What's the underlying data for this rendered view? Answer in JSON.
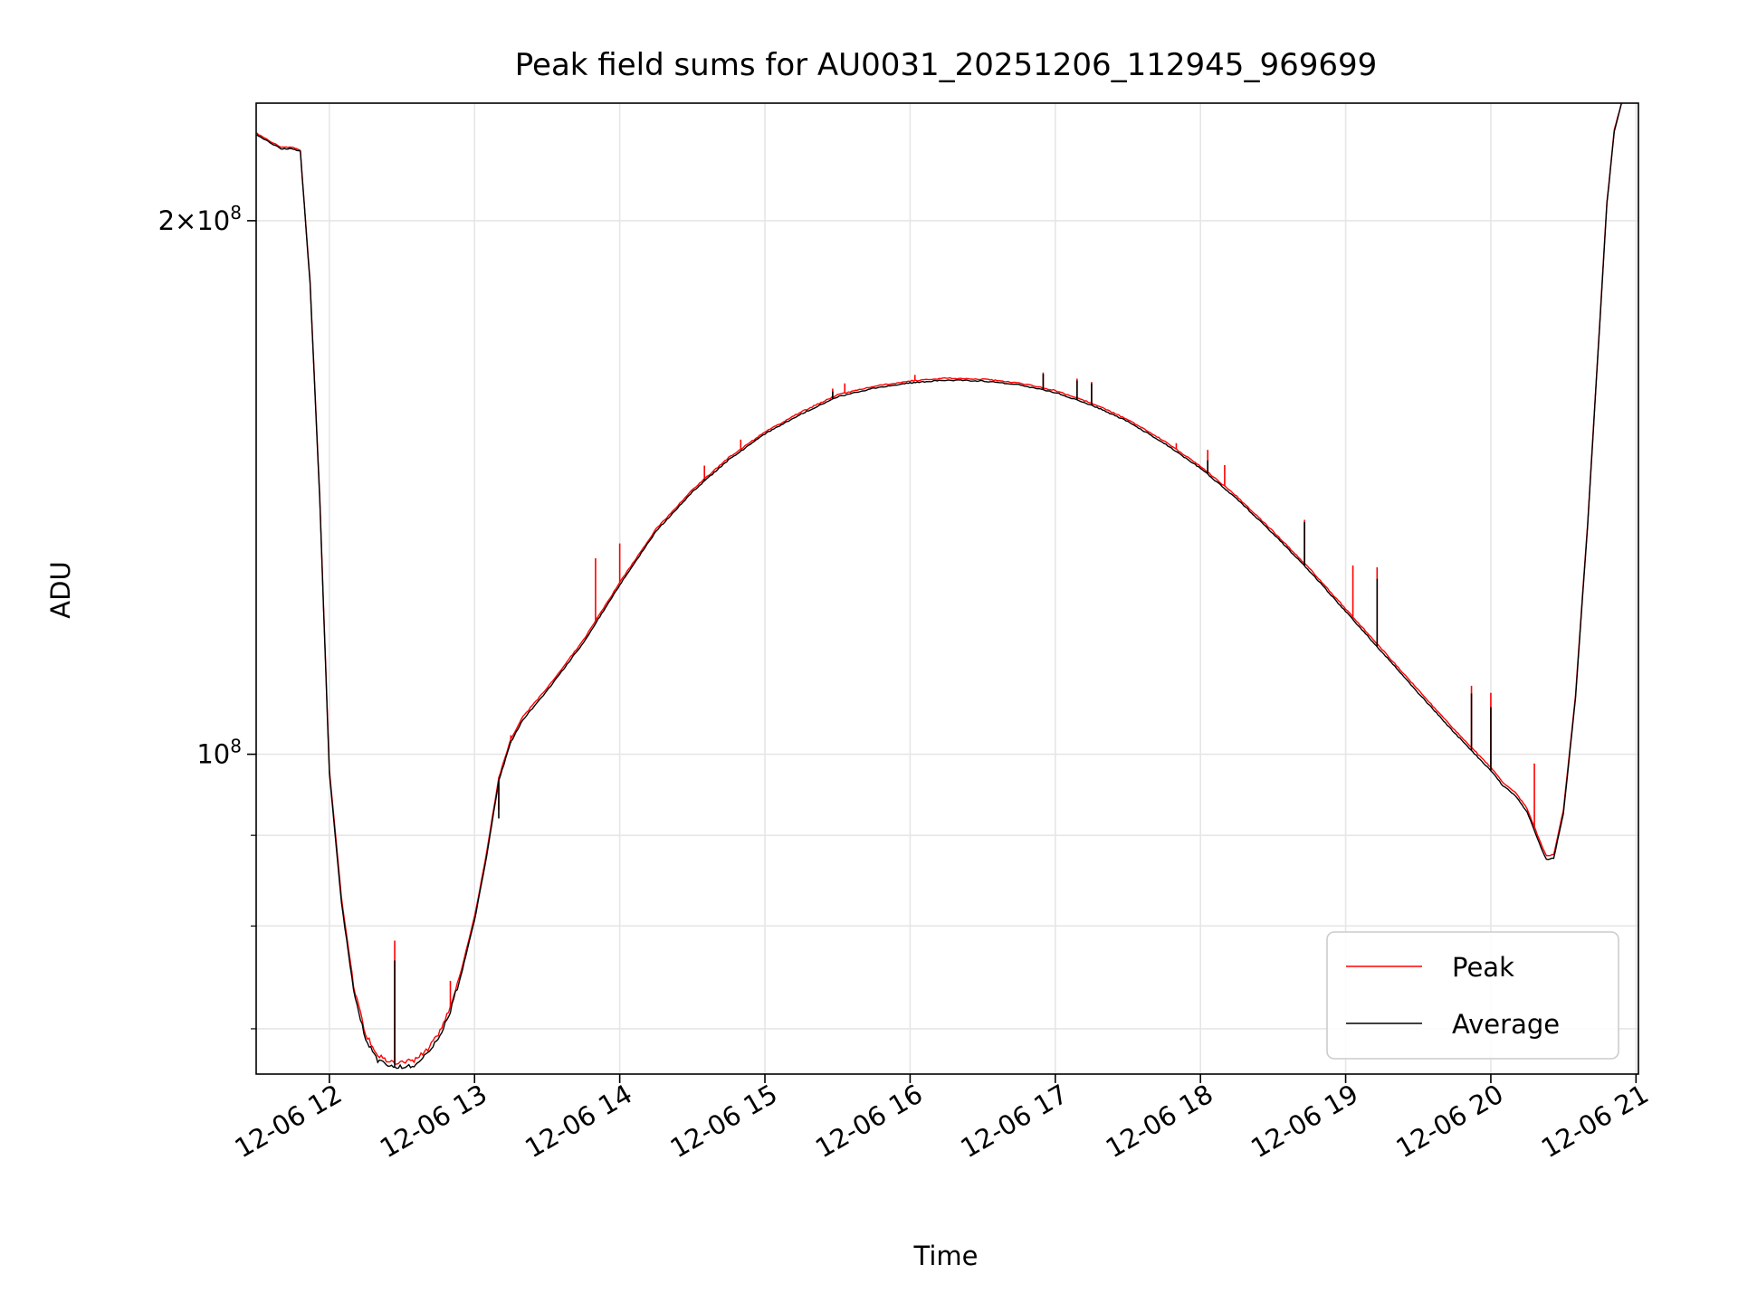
{
  "chart_data": {
    "type": "line",
    "title": "Peak field sums for AU0031_20251206_112945_969699",
    "xlabel": "Time",
    "ylabel": "ADU",
    "yscale": "log",
    "grid": true,
    "legend_position": "lower-right",
    "xlim": [
      "2025-12-06 11:29:45",
      "2025-12-06 21:01:00"
    ],
    "ylim": [
      66000000,
      233000000
    ],
    "x_ticks": [
      "12-06 12",
      "12-06 13",
      "12-06 14",
      "12-06 15",
      "12-06 16",
      "12-06 17",
      "12-06 18",
      "12-06 19",
      "12-06 20",
      "12-06 21"
    ],
    "y_ticks": [
      {
        "value": 100000000,
        "base": "10",
        "exp": "8",
        "coef": ""
      },
      {
        "value": 200000000,
        "base": "10",
        "exp": "8",
        "coef": "2"
      }
    ],
    "y_minor_ticks": [
      70000000,
      80000000,
      90000000
    ],
    "series": [
      {
        "name": "Peak",
        "color": "#ff0000",
        "points": [
          [
            "11:30",
            224000000
          ],
          [
            "11:40",
            220000000
          ],
          [
            "11:45",
            220000000
          ],
          [
            "11:48",
            219000000
          ],
          [
            "11:52",
            185000000
          ],
          [
            "11:56",
            140000000
          ],
          [
            "12:00",
            98000000
          ],
          [
            "12:05",
            83000000
          ],
          [
            "12:10",
            74000000
          ],
          [
            "12:15",
            69500000
          ],
          [
            "12:20",
            67700000
          ],
          [
            "12:25",
            67000000
          ],
          [
            "12:30",
            67000000
          ],
          [
            "12:35",
            67200000
          ],
          [
            "12:40",
            68000000
          ],
          [
            "12:45",
            69500000
          ],
          [
            "12:50",
            72000000
          ],
          [
            "12:55",
            76000000
          ],
          [
            "13:00",
            81000000
          ],
          [
            "13:05",
            88000000
          ],
          [
            "13:10",
            97000000
          ],
          [
            "13:15",
            102000000
          ],
          [
            "13:20",
            105000000
          ],
          [
            "13:30",
            109000000
          ],
          [
            "13:45",
            116000000
          ],
          [
            "14:00",
            125000000
          ],
          [
            "14:15",
            134000000
          ],
          [
            "14:30",
            141000000
          ],
          [
            "14:45",
            147000000
          ],
          [
            "15:00",
            152000000
          ],
          [
            "15:15",
            156000000
          ],
          [
            "15:30",
            159500000
          ],
          [
            "15:45",
            161300000
          ],
          [
            "16:00",
            162400000
          ],
          [
            "16:15",
            163000000
          ],
          [
            "16:30",
            162800000
          ],
          [
            "16:45",
            162000000
          ],
          [
            "17:00",
            160400000
          ],
          [
            "17:15",
            157800000
          ],
          [
            "17:30",
            154500000
          ],
          [
            "17:45",
            150200000
          ],
          [
            "18:00",
            145400000
          ],
          [
            "18:15",
            139800000
          ],
          [
            "18:30",
            133600000
          ],
          [
            "18:45",
            127300000
          ],
          [
            "19:00",
            120800000
          ],
          [
            "19:15",
            114600000
          ],
          [
            "19:30",
            108700000
          ],
          [
            "19:45",
            103200000
          ],
          [
            "20:00",
            98300000
          ],
          [
            "20:05",
            96400000
          ],
          [
            "20:10",
            95200000
          ],
          [
            "20:15",
            93200000
          ],
          [
            "20:20",
            89500000
          ],
          [
            "20:23",
            87600000
          ],
          [
            "20:26",
            87800000
          ],
          [
            "20:30",
            93000000
          ],
          [
            "20:35",
            108000000
          ],
          [
            "20:40",
            135000000
          ],
          [
            "20:45",
            175000000
          ],
          [
            "20:48",
            205000000
          ],
          [
            "20:51",
            225000000
          ],
          [
            "20:54",
            233000000
          ]
        ],
        "spikes": [
          [
            "12:27",
            78500000
          ],
          [
            "12:50",
            74500000
          ],
          [
            "13:10",
            93000000
          ],
          [
            "13:15",
            102500000
          ],
          [
            "13:50",
            129000000
          ],
          [
            "14:00",
            131500000
          ],
          [
            "14:35",
            145500000
          ],
          [
            "14:50",
            150500000
          ],
          [
            "15:28",
            160800000
          ],
          [
            "15:33",
            161900000
          ],
          [
            "16:02",
            163700000
          ],
          [
            "16:55",
            164200000
          ],
          [
            "17:09",
            162900000
          ],
          [
            "17:15",
            162200000
          ],
          [
            "17:50",
            149800000
          ],
          [
            "18:03",
            148500000
          ],
          [
            "18:10",
            145600000
          ],
          [
            "18:43",
            135600000
          ],
          [
            "19:03",
            127800000
          ],
          [
            "19:13",
            127500000
          ],
          [
            "19:52",
            109300000
          ],
          [
            "20:00",
            108300000
          ],
          [
            "20:18",
            98800000
          ]
        ]
      },
      {
        "name": "Average",
        "color": "#000000",
        "points": [
          [
            "11:30",
            223500000
          ],
          [
            "11:40",
            219600000
          ],
          [
            "11:45",
            219600000
          ],
          [
            "11:48",
            218800000
          ],
          [
            "11:52",
            184500000
          ],
          [
            "11:56",
            139500000
          ],
          [
            "12:00",
            97500000
          ],
          [
            "12:05",
            82500000
          ],
          [
            "12:10",
            73500000
          ],
          [
            "12:15",
            69000000
          ],
          [
            "12:20",
            67200000
          ],
          [
            "12:25",
            66600000
          ],
          [
            "12:30",
            66600000
          ],
          [
            "12:35",
            66800000
          ],
          [
            "12:40",
            67600000
          ],
          [
            "12:45",
            69100000
          ],
          [
            "12:50",
            71600000
          ],
          [
            "12:55",
            75600000
          ],
          [
            "13:00",
            80600000
          ],
          [
            "13:05",
            87600000
          ],
          [
            "13:10",
            96600000
          ],
          [
            "13:15",
            101600000
          ],
          [
            "13:20",
            104600000
          ],
          [
            "13:30",
            108600000
          ],
          [
            "13:45",
            115600000
          ],
          [
            "14:00",
            124600000
          ],
          [
            "14:15",
            133600000
          ],
          [
            "14:30",
            140600000
          ],
          [
            "14:45",
            146600000
          ],
          [
            "15:00",
            151600000
          ],
          [
            "15:15",
            155600000
          ],
          [
            "15:30",
            159100000
          ],
          [
            "15:45",
            160900000
          ],
          [
            "16:00",
            162000000
          ],
          [
            "16:15",
            162600000
          ],
          [
            "16:30",
            162400000
          ],
          [
            "16:45",
            161600000
          ],
          [
            "17:00",
            160000000
          ],
          [
            "17:15",
            157400000
          ],
          [
            "17:30",
            154100000
          ],
          [
            "17:45",
            149800000
          ],
          [
            "18:00",
            145000000
          ],
          [
            "18:15",
            139400000
          ],
          [
            "18:30",
            133200000
          ],
          [
            "18:45",
            126900000
          ],
          [
            "19:00",
            120400000
          ],
          [
            "19:15",
            114200000
          ],
          [
            "19:30",
            108300000
          ],
          [
            "19:45",
            102800000
          ],
          [
            "20:00",
            97900000
          ],
          [
            "20:05",
            96000000
          ],
          [
            "20:10",
            94800000
          ],
          [
            "20:15",
            92800000
          ],
          [
            "20:20",
            89100000
          ],
          [
            "20:23",
            87200000
          ],
          [
            "20:26",
            87400000
          ],
          [
            "20:30",
            92600000
          ],
          [
            "20:35",
            107600000
          ],
          [
            "20:40",
            134600000
          ],
          [
            "20:45",
            174600000
          ],
          [
            "20:48",
            204600000
          ],
          [
            "20:51",
            224600000
          ],
          [
            "20:54",
            233000000
          ]
        ],
        "spikes": [
          [
            "12:27",
            76500000
          ],
          [
            "13:10",
            92000000
          ],
          [
            "13:15",
            101500000
          ],
          [
            "14:35",
            143000000
          ],
          [
            "15:28",
            160200000
          ],
          [
            "16:55",
            163900000
          ],
          [
            "17:09",
            162500000
          ],
          [
            "17:15",
            161900000
          ],
          [
            "18:03",
            146500000
          ],
          [
            "18:43",
            135200000
          ],
          [
            "19:13",
            125600000
          ],
          [
            "19:52",
            108200000
          ],
          [
            "20:00",
            106300000
          ]
        ]
      }
    ]
  }
}
